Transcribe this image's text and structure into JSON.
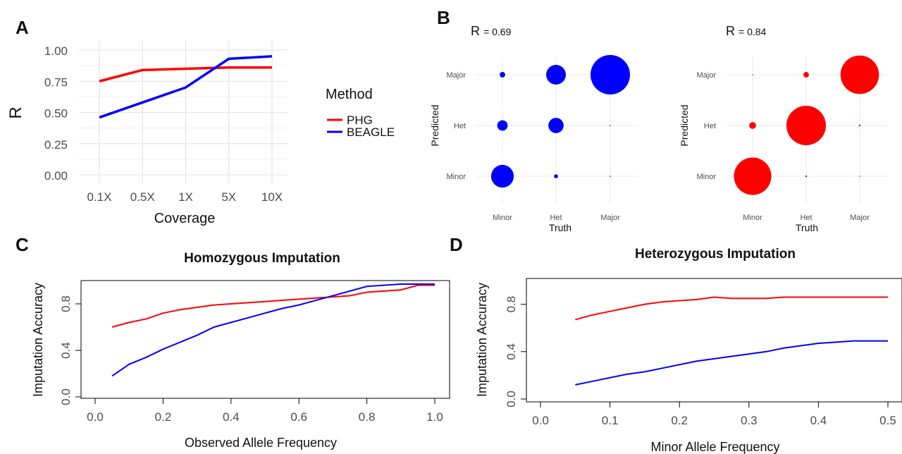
{
  "panels": {
    "a": "A",
    "b": "B",
    "c": "C",
    "d": "D"
  },
  "chart_data": [
    {
      "id": "A",
      "type": "line",
      "xlabel": "Coverage",
      "ylabel": "R",
      "categories": [
        "0.1X",
        "0.5X",
        "1X",
        "5X",
        "10X"
      ],
      "ylim": [
        0,
        1
      ],
      "yticks": [
        "0.00",
        "0.25",
        "0.50",
        "0.75",
        "1.00"
      ],
      "grid": true,
      "legend_title": "Method",
      "legend_position": "right",
      "series": [
        {
          "name": "PHG",
          "color": "#ff0000",
          "values": [
            0.75,
            0.84,
            0.85,
            0.86,
            0.86
          ]
        },
        {
          "name": "BEAGLE",
          "color": "#0000ff",
          "values": [
            0.46,
            0.58,
            0.7,
            0.93,
            0.95
          ]
        }
      ]
    },
    {
      "id": "B",
      "type": "scatter",
      "xlabel": "Truth",
      "ylabel": "Predicted",
      "categories": [
        "Minor",
        "Het",
        "Major"
      ],
      "subplots": [
        {
          "label": "R",
          "r_value": "= 0.69",
          "color": "#0000ff",
          "points": [
            {
              "truth": "Minor",
              "predicted": "Major",
              "size": 0.02
            },
            {
              "truth": "Het",
              "predicted": "Major",
              "size": 0.25
            },
            {
              "truth": "Major",
              "predicted": "Major",
              "size": 1.0
            },
            {
              "truth": "Minor",
              "predicted": "Het",
              "size": 0.07
            },
            {
              "truth": "Het",
              "predicted": "Het",
              "size": 0.15
            },
            {
              "truth": "Major",
              "predicted": "Het",
              "size": 0.0005
            },
            {
              "truth": "Minor",
              "predicted": "Minor",
              "size": 0.33
            },
            {
              "truth": "Het",
              "predicted": "Minor",
              "size": 0.01
            },
            {
              "truth": "Major",
              "predicted": "Minor",
              "size": 0.0005
            }
          ]
        },
        {
          "label": "R",
          "r_value": "= 0.84",
          "color": "#ff0000",
          "points": [
            {
              "truth": "Minor",
              "predicted": "Major",
              "size": 0.0008
            },
            {
              "truth": "Het",
              "predicted": "Major",
              "size": 0.02
            },
            {
              "truth": "Major",
              "predicted": "Major",
              "size": 0.95
            },
            {
              "truth": "Minor",
              "predicted": "Het",
              "size": 0.03
            },
            {
              "truth": "Het",
              "predicted": "Het",
              "size": 1.0
            },
            {
              "truth": "Major",
              "predicted": "Het",
              "size": 0.002
            },
            {
              "truth": "Minor",
              "predicted": "Minor",
              "size": 0.9
            },
            {
              "truth": "Het",
              "predicted": "Minor",
              "size": 0.002
            },
            {
              "truth": "Major",
              "predicted": "Minor",
              "size": 0.0008
            }
          ]
        }
      ]
    },
    {
      "id": "C",
      "type": "line",
      "title": "Homozygous Imputation",
      "xlabel": "Observed Allele Frequency",
      "ylabel": "Imputation Accuracy",
      "xlim": [
        0,
        1.0
      ],
      "ylim": [
        0,
        1.0
      ],
      "xticks": [
        "0.0",
        "0.2",
        "0.4",
        "0.6",
        "0.8",
        "1.0"
      ],
      "yticks": [
        "0.0",
        "0.4",
        "0.8"
      ],
      "series": [
        {
          "color": "#ff0000",
          "x": [
            0.05,
            0.1,
            0.15,
            0.2,
            0.25,
            0.3,
            0.35,
            0.4,
            0.45,
            0.5,
            0.55,
            0.6,
            0.65,
            0.7,
            0.75,
            0.8,
            0.85,
            0.9,
            0.95,
            1.0
          ],
          "values": [
            0.6,
            0.64,
            0.67,
            0.72,
            0.75,
            0.77,
            0.79,
            0.8,
            0.81,
            0.82,
            0.83,
            0.84,
            0.85,
            0.86,
            0.87,
            0.9,
            0.91,
            0.92,
            0.96,
            0.96
          ]
        },
        {
          "color": "#0000ff",
          "x": [
            0.05,
            0.1,
            0.15,
            0.2,
            0.25,
            0.3,
            0.35,
            0.4,
            0.45,
            0.5,
            0.55,
            0.6,
            0.65,
            0.7,
            0.75,
            0.8,
            0.85,
            0.9,
            0.95,
            1.0
          ],
          "values": [
            0.18,
            0.28,
            0.34,
            0.41,
            0.47,
            0.53,
            0.6,
            0.64,
            0.68,
            0.72,
            0.76,
            0.79,
            0.83,
            0.87,
            0.91,
            0.95,
            0.96,
            0.97,
            0.97,
            0.97
          ]
        }
      ]
    },
    {
      "id": "D",
      "type": "line",
      "title": "Heterozygous Imputation",
      "xlabel": "Minor Allele Frequency",
      "ylabel": "Imputation Accuracy",
      "xlim": [
        0,
        0.5
      ],
      "ylim": [
        0,
        1.0
      ],
      "xticks": [
        "0.0",
        "0.1",
        "0.2",
        "0.3",
        "0.4",
        "0.5"
      ],
      "yticks": [
        "0.0",
        "0.4",
        "0.8"
      ],
      "series": [
        {
          "color": "#ff0000",
          "x": [
            0.05,
            0.075,
            0.1,
            0.125,
            0.15,
            0.175,
            0.2,
            0.225,
            0.25,
            0.275,
            0.3,
            0.325,
            0.35,
            0.375,
            0.4,
            0.425,
            0.45,
            0.475,
            0.5
          ],
          "values": [
            0.67,
            0.71,
            0.74,
            0.77,
            0.8,
            0.82,
            0.83,
            0.84,
            0.86,
            0.85,
            0.85,
            0.85,
            0.86,
            0.86,
            0.86,
            0.86,
            0.86,
            0.86,
            0.86
          ]
        },
        {
          "color": "#0000ff",
          "x": [
            0.05,
            0.075,
            0.1,
            0.125,
            0.15,
            0.175,
            0.2,
            0.225,
            0.25,
            0.275,
            0.3,
            0.325,
            0.35,
            0.375,
            0.4,
            0.425,
            0.45,
            0.475,
            0.5
          ],
          "values": [
            0.12,
            0.15,
            0.18,
            0.21,
            0.23,
            0.26,
            0.29,
            0.32,
            0.34,
            0.36,
            0.38,
            0.4,
            0.43,
            0.45,
            0.47,
            0.48,
            0.49,
            0.49,
            0.49
          ]
        }
      ]
    }
  ]
}
